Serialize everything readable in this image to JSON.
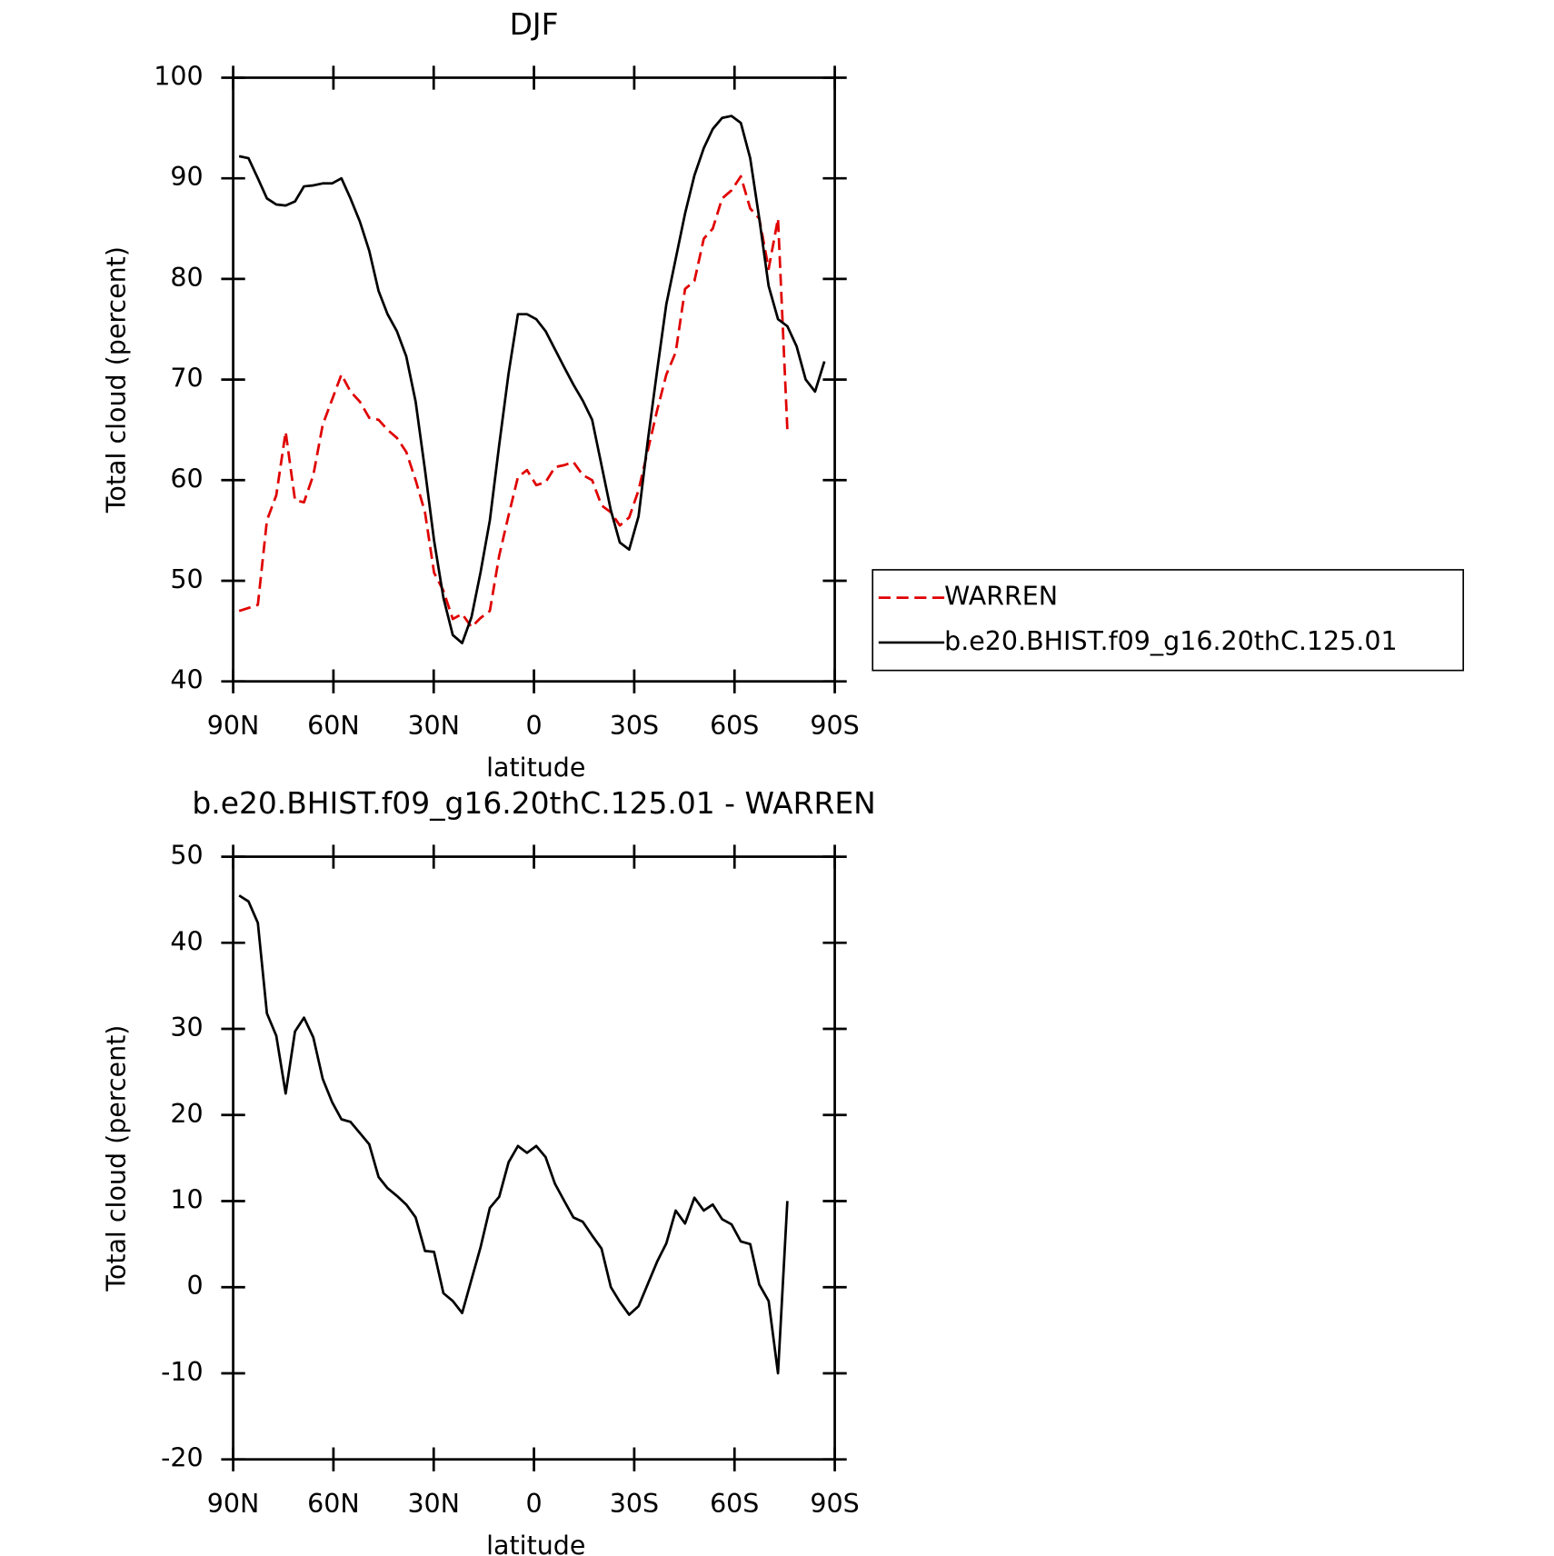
{
  "chart_data": [
    {
      "type": "line",
      "title": "DJF",
      "xlabel": "latitude",
      "ylabel": "Total cloud (percent)",
      "x": [
        88.2,
        85.4,
        82.6,
        79.9,
        77.1,
        74.3,
        71.5,
        68.8,
        66.0,
        63.2,
        60.4,
        57.6,
        54.9,
        52.1,
        49.3,
        46.5,
        43.8,
        41.0,
        38.2,
        35.4,
        32.6,
        29.9,
        27.1,
        24.3,
        21.5,
        18.7,
        16.0,
        13.2,
        10.4,
        7.6,
        4.8,
        2.1,
        -0.7,
        -3.5,
        -6.3,
        -9.1,
        -11.8,
        -14.6,
        -17.4,
        -20.2,
        -23.0,
        -25.7,
        -28.5,
        -31.3,
        -34.1,
        -36.9,
        -39.6,
        -42.4,
        -45.2,
        -48.0,
        -50.8,
        -53.5,
        -56.3,
        -59.1,
        -61.9,
        -64.7,
        -67.4,
        -70.2,
        -73.0,
        -75.8,
        -78.6,
        -81.3,
        -84.1,
        -86.9
      ],
      "series": [
        {
          "name": "WARREN",
          "color": "#e00000",
          "linestyle": "dashed",
          "values": [
            47.0,
            47.3,
            47.6,
            56.0,
            58.5,
            64.8,
            58.0,
            57.8,
            60.5,
            65.5,
            68.0,
            70.5,
            68.8,
            67.8,
            66.2,
            66.0,
            65.0,
            64.2,
            62.8,
            60.0,
            56.8,
            50.8,
            49.0,
            46.2,
            46.7,
            45.4,
            46.3,
            47.0,
            52.5,
            56.5,
            60.3,
            61.0,
            59.5,
            59.8,
            61.3,
            61.5,
            61.8,
            60.5,
            60.0,
            57.5,
            56.8,
            55.5,
            56.3,
            59.0,
            63.0,
            67.0,
            70.5,
            72.7,
            79.0,
            79.8,
            84.0,
            85.0,
            88.0,
            88.8,
            90.2,
            87.0,
            86.0,
            81.0,
            86.0,
            65.0,
            null,
            null,
            null,
            null
          ]
        },
        {
          "name": "b.e20.BHIST.f09_g16.20thC.125.01",
          "color": "#000000",
          "linestyle": "solid",
          "values": [
            92.2,
            92.0,
            90.0,
            88.0,
            87.4,
            87.3,
            87.7,
            89.2,
            89.3,
            89.5,
            89.5,
            90.0,
            88.0,
            85.7,
            82.8,
            78.8,
            76.5,
            74.8,
            72.3,
            67.8,
            61.0,
            54.0,
            48.3,
            44.6,
            43.8,
            46.4,
            50.8,
            56.0,
            63.5,
            70.6,
            76.5,
            76.5,
            76.0,
            74.8,
            73.0,
            71.2,
            69.5,
            67.9,
            66.0,
            61.5,
            57.0,
            53.8,
            53.1,
            56.4,
            64.0,
            71.0,
            77.5,
            82.0,
            86.5,
            90.3,
            93.0,
            94.9,
            96.0,
            96.2,
            95.5,
            92.0,
            86.0,
            79.3,
            76.0,
            75.3,
            73.3,
            70.0,
            68.8,
            71.8
          ]
        }
      ],
      "xlim": [
        90,
        -90
      ],
      "ylim": [
        40,
        100
      ],
      "xticks": [
        {
          "value": 90,
          "label": "90N"
        },
        {
          "value": 60,
          "label": "60N"
        },
        {
          "value": 30,
          "label": "30N"
        },
        0,
        {
          "value": -30,
          "label": "30S"
        },
        {
          "value": -60,
          "label": "60S"
        },
        {
          "value": -90,
          "label": "90S"
        }
      ],
      "yticks": [
        40,
        50,
        60,
        70,
        80,
        90,
        100
      ],
      "legend": "outside right"
    },
    {
      "type": "line",
      "title": "b.e20.BHIST.f09_g16.20thC.125.01 - WARREN",
      "xlabel": "latitude",
      "ylabel": "Total cloud (percent)",
      "x": [
        88.2,
        85.4,
        82.6,
        79.9,
        77.1,
        74.3,
        71.5,
        68.8,
        66.0,
        63.2,
        60.4,
        57.6,
        54.9,
        52.1,
        49.3,
        46.5,
        43.8,
        41.0,
        38.2,
        35.4,
        32.6,
        29.9,
        27.1,
        24.3,
        21.5,
        18.7,
        16.0,
        13.2,
        10.4,
        7.6,
        4.8,
        2.1,
        -0.7,
        -3.5,
        -6.3,
        -9.1,
        -11.8,
        -14.6,
        -17.4,
        -20.2,
        -23.0,
        -25.7,
        -28.5,
        -31.3,
        -34.1,
        -36.9,
        -39.6,
        -42.4,
        -45.2,
        -48.0,
        -50.8,
        -53.5,
        -56.3,
        -59.1,
        -61.9,
        -64.7,
        -67.4,
        -70.2,
        -73.0,
        -75.8
      ],
      "series": [
        {
          "color": "#000000",
          "linestyle": "solid",
          "values": [
            45.5,
            44.8,
            42.3,
            31.8,
            29.2,
            22.5,
            29.7,
            31.3,
            29.0,
            24.2,
            21.5,
            19.5,
            19.2,
            17.9,
            16.6,
            12.8,
            11.5,
            10.6,
            9.6,
            8.1,
            4.2,
            4.1,
            -0.7,
            -1.6,
            -3.0,
            0.9,
            4.6,
            9.2,
            10.5,
            14.5,
            16.4,
            15.6,
            16.4,
            15.1,
            12.0,
            10.0,
            8.1,
            7.6,
            6.0,
            4.5,
            0.0,
            -1.7,
            -3.2,
            -2.2,
            0.4,
            3.0,
            5.1,
            8.9,
            7.4,
            10.4,
            8.9,
            9.6,
            7.9,
            7.3,
            5.3,
            5.0,
            0.3,
            -1.6,
            -10.0,
            10.0
          ]
        }
      ],
      "xlim": [
        90,
        -90
      ],
      "ylim": [
        -20,
        50
      ],
      "xticks": [
        {
          "value": 90,
          "label": "90N"
        },
        {
          "value": 60,
          "label": "60N"
        },
        {
          "value": 30,
          "label": "30N"
        },
        0,
        {
          "value": -30,
          "label": "30S"
        },
        {
          "value": -60,
          "label": "60S"
        },
        {
          "value": -90,
          "label": "90S"
        }
      ],
      "yticks": [
        -20,
        -10,
        0,
        10,
        20,
        30,
        40,
        50
      ]
    }
  ]
}
